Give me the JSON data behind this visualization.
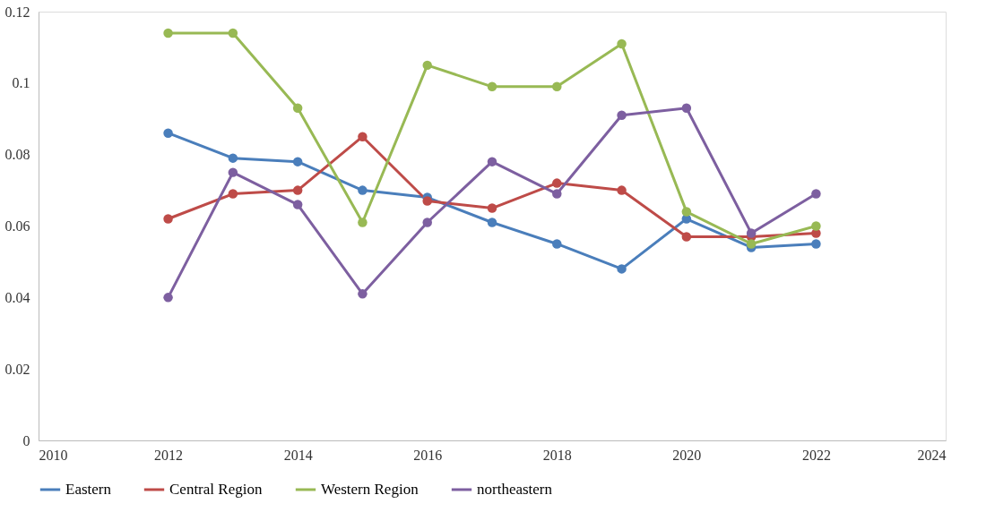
{
  "chart_data": {
    "type": "line",
    "x": [
      2012,
      2013,
      2014,
      2015,
      2016,
      2017,
      2018,
      2019,
      2020,
      2021,
      2022
    ],
    "xlim": [
      2010,
      2024
    ],
    "xticks": [
      2010,
      2012,
      2014,
      2016,
      2018,
      2020,
      2022,
      2024
    ],
    "ylim": [
      0,
      0.12
    ],
    "yticks": [
      0,
      0.02,
      0.04,
      0.06,
      0.08,
      0.1,
      0.12
    ],
    "grid": false,
    "legend": "bottom",
    "marker": "circle",
    "line_style": "solid",
    "series": [
      {
        "name": "Eastern",
        "color": "#4a7ebb",
        "values": [
          0.086,
          0.079,
          0.078,
          0.07,
          0.068,
          0.061,
          0.055,
          0.048,
          0.062,
          0.054,
          0.055
        ]
      },
      {
        "name": "Central Region",
        "color": "#be4b48",
        "values": [
          0.062,
          0.069,
          0.07,
          0.085,
          0.067,
          0.065,
          0.072,
          0.07,
          0.057,
          0.057,
          0.058
        ]
      },
      {
        "name": "Western Region",
        "color": "#98b954",
        "values": [
          0.114,
          0.114,
          0.093,
          0.061,
          0.105,
          0.099,
          0.099,
          0.111,
          0.064,
          0.055,
          0.06
        ]
      },
      {
        "name": "northeastern",
        "color": "#7d5fa0",
        "values": [
          0.04,
          0.075,
          0.066,
          0.041,
          0.061,
          0.078,
          0.069,
          0.091,
          0.093,
          0.058,
          0.069
        ]
      }
    ]
  }
}
